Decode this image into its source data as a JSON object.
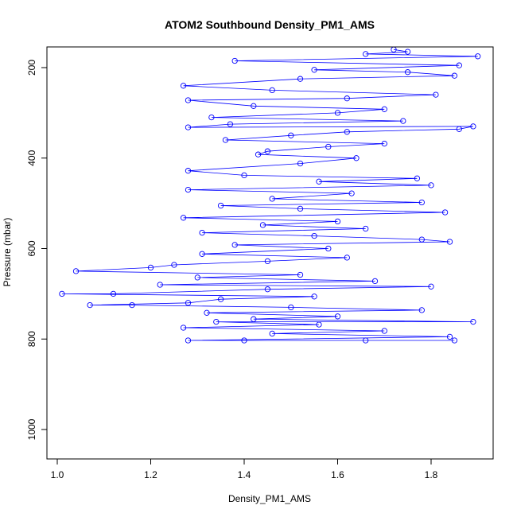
{
  "chart_data": {
    "type": "scatter",
    "title": "ATOM2 Southbound Density_PM1_AMS",
    "xlabel": "Density_PM1_AMS",
    "ylabel": "Pressure (mbar)",
    "xlim": [
      0.98,
      1.92
    ],
    "ylim": [
      1060,
      150
    ],
    "y_reversed": true,
    "x_ticks": [
      1.0,
      1.2,
      1.4,
      1.6,
      1.8
    ],
    "x_tick_labels": [
      "1.0",
      "1.2",
      "1.4",
      "1.6",
      "1.8"
    ],
    "y_ticks": [
      200,
      400,
      600,
      800,
      1000
    ],
    "y_tick_labels": [
      "200",
      "400",
      "600",
      "800",
      "1000"
    ],
    "grid": false,
    "legend": "none",
    "marker": "open-circle",
    "line": true,
    "series_color": "#0000ff",
    "series": [
      {
        "points": [
          [
            1.72,
            160
          ],
          [
            1.75,
            165
          ],
          [
            1.66,
            170
          ],
          [
            1.9,
            175
          ],
          [
            1.38,
            185
          ],
          [
            1.86,
            195
          ],
          [
            1.55,
            205
          ],
          [
            1.75,
            210
          ],
          [
            1.85,
            218
          ],
          [
            1.52,
            225
          ],
          [
            1.27,
            240
          ],
          [
            1.46,
            250
          ],
          [
            1.81,
            260
          ],
          [
            1.62,
            268
          ],
          [
            1.28,
            272
          ],
          [
            1.42,
            285
          ],
          [
            1.7,
            292
          ],
          [
            1.6,
            300
          ],
          [
            1.33,
            310
          ],
          [
            1.74,
            318
          ],
          [
            1.37,
            325
          ],
          [
            1.28,
            332
          ],
          [
            1.89,
            330
          ],
          [
            1.86,
            336
          ],
          [
            1.62,
            342
          ],
          [
            1.5,
            350
          ],
          [
            1.36,
            360
          ],
          [
            1.7,
            368
          ],
          [
            1.58,
            375
          ],
          [
            1.45,
            385
          ],
          [
            1.43,
            392
          ],
          [
            1.64,
            400
          ],
          [
            1.52,
            412
          ],
          [
            1.28,
            428
          ],
          [
            1.4,
            438
          ],
          [
            1.77,
            445
          ],
          [
            1.56,
            452
          ],
          [
            1.8,
            460
          ],
          [
            1.28,
            470
          ],
          [
            1.63,
            478
          ],
          [
            1.46,
            490
          ],
          [
            1.78,
            498
          ],
          [
            1.35,
            505
          ],
          [
            1.52,
            512
          ],
          [
            1.83,
            520
          ],
          [
            1.27,
            532
          ],
          [
            1.6,
            540
          ],
          [
            1.44,
            548
          ],
          [
            1.66,
            556
          ],
          [
            1.31,
            565
          ],
          [
            1.55,
            572
          ],
          [
            1.78,
            580
          ],
          [
            1.84,
            585
          ],
          [
            1.38,
            592
          ],
          [
            1.58,
            600
          ],
          [
            1.31,
            612
          ],
          [
            1.62,
            620
          ],
          [
            1.45,
            628
          ],
          [
            1.25,
            636
          ],
          [
            1.2,
            642
          ],
          [
            1.04,
            650
          ],
          [
            1.52,
            658
          ],
          [
            1.3,
            664
          ],
          [
            1.68,
            672
          ],
          [
            1.22,
            680
          ],
          [
            1.8,
            684
          ],
          [
            1.45,
            690
          ],
          [
            1.12,
            700
          ],
          [
            1.01,
            700
          ],
          [
            1.55,
            706
          ],
          [
            1.35,
            712
          ],
          [
            1.28,
            720
          ],
          [
            1.07,
            725
          ],
          [
            1.16,
            725
          ],
          [
            1.5,
            730
          ],
          [
            1.78,
            736
          ],
          [
            1.32,
            742
          ],
          [
            1.6,
            750
          ],
          [
            1.42,
            756
          ],
          [
            1.89,
            762
          ],
          [
            1.34,
            762
          ],
          [
            1.56,
            768
          ],
          [
            1.27,
            775
          ],
          [
            1.7,
            782
          ],
          [
            1.46,
            788
          ],
          [
            1.84,
            795
          ],
          [
            1.28,
            803
          ],
          [
            1.66,
            803
          ],
          [
            1.85,
            803
          ],
          [
            1.4,
            803
          ]
        ]
      }
    ]
  }
}
